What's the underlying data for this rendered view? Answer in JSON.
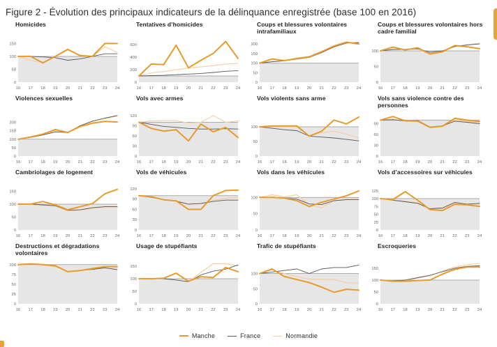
{
  "title": "Figure 2 - Évolution des principaux indicateurs de la délinquance enregistrée (base 100 en 2016)",
  "x_years": [
    "16",
    "17",
    "18",
    "19",
    "20",
    "21",
    "22",
    "23",
    "24"
  ],
  "colors": {
    "manche": "#E89B2D",
    "france": "#55555E",
    "normandie": "#F5CE9B",
    "area": "#E6E6E6",
    "baseline": "#ABABAB",
    "axis_text": "#666666",
    "accent_bar": "#E9A23B"
  },
  "legend": {
    "items": [
      {
        "label": "Manche",
        "color": "#E89B2D"
      },
      {
        "label": "France",
        "color": "#55555E"
      },
      {
        "label": "Normandie",
        "color": "#F5CE9B"
      }
    ]
  },
  "chart_data": [
    {
      "type": "line",
      "title": "Homicides",
      "yticks": [
        0,
        50,
        100,
        150
      ],
      "ymax": 170,
      "series": [
        {
          "name": "Manche",
          "values": [
            100,
            100,
            75,
            100,
            127,
            103,
            100,
            150,
            150
          ]
        },
        {
          "name": "France",
          "values": [
            100,
            100,
            98,
            95,
            85,
            90,
            100,
            110,
            110
          ]
        },
        {
          "name": "Normandie",
          "values": [
            100,
            85,
            75,
            100,
            125,
            105,
            100,
            138,
            115
          ]
        }
      ]
    },
    {
      "type": "line",
      "title": "Tentatives d’homicides",
      "yticks": [
        0,
        200,
        400,
        600
      ],
      "ymax": 700,
      "series": [
        {
          "name": "Manche",
          "values": [
            100,
            290,
            280,
            590,
            230,
            350,
            460,
            650,
            380
          ]
        },
        {
          "name": "France",
          "values": [
            100,
            105,
            110,
            120,
            130,
            140,
            155,
            175,
            185
          ]
        },
        {
          "name": "Normandie",
          "values": [
            100,
            150,
            170,
            200,
            225,
            245,
            265,
            290,
            300
          ]
        }
      ]
    },
    {
      "type": "line",
      "title": "Coups et blessures volontaires intrafamiliaux",
      "yticks": [
        0,
        50,
        100,
        150,
        200
      ],
      "ymax": 230,
      "series": [
        {
          "name": "Manche",
          "values": [
            100,
            122,
            113,
            125,
            133,
            160,
            190,
            210,
            200
          ]
        },
        {
          "name": "France",
          "values": [
            100,
            107,
            112,
            122,
            130,
            155,
            185,
            205,
            207
          ]
        },
        {
          "name": "Normandie",
          "values": [
            100,
            110,
            112,
            120,
            132,
            158,
            188,
            208,
            210
          ]
        }
      ]
    },
    {
      "type": "line",
      "title": "Coups et blessures volontaires hors cadre familial",
      "yticks": [
        0,
        50,
        100
      ],
      "ymax": 140,
      "series": [
        {
          "name": "Manche",
          "values": [
            100,
            112,
            103,
            110,
            90,
            97,
            117,
            113,
            107
          ]
        },
        {
          "name": "France",
          "values": [
            100,
            104,
            105,
            107,
            96,
            100,
            114,
            119,
            122
          ]
        },
        {
          "name": "Normandie",
          "values": [
            100,
            106,
            104,
            106,
            93,
            98,
            113,
            119,
            125
          ]
        }
      ]
    },
    {
      "type": "line",
      "title": "Violences sexuelles",
      "yticks": [
        0,
        50,
        100,
        150,
        200
      ],
      "ymax": 260,
      "series": [
        {
          "name": "Manche",
          "values": [
            100,
            113,
            130,
            157,
            140,
            175,
            195,
            205,
            202
          ]
        },
        {
          "name": "France",
          "values": [
            100,
            110,
            125,
            143,
            140,
            180,
            207,
            225,
            240
          ]
        },
        {
          "name": "Normandie",
          "values": [
            100,
            112,
            127,
            147,
            137,
            178,
            205,
            222,
            237
          ]
        }
      ]
    },
    {
      "type": "line",
      "title": "Vols avec armes",
      "yticks": [
        0,
        30,
        60,
        90,
        120
      ],
      "ymax": 130,
      "series": [
        {
          "name": "Manche",
          "values": [
            100,
            82,
            74,
            78,
            45,
            95,
            72,
            85,
            55
          ]
        },
        {
          "name": "France",
          "values": [
            100,
            94,
            88,
            85,
            82,
            80,
            80,
            81,
            80
          ]
        },
        {
          "name": "Normandie",
          "values": [
            100,
            104,
            105,
            105,
            98,
            100,
            120,
            100,
            104
          ]
        }
      ]
    },
    {
      "type": "line",
      "title": "Vols violents sans arme",
      "yticks": [
        0,
        50,
        100
      ],
      "ymax": 150,
      "series": [
        {
          "name": "Manche",
          "values": [
            100,
            103,
            103,
            103,
            68,
            85,
            123,
            110,
            133
          ]
        },
        {
          "name": "France",
          "values": [
            100,
            95,
            90,
            87,
            68,
            65,
            62,
            57,
            52
          ]
        },
        {
          "name": "Normandie",
          "values": [
            100,
            100,
            100,
            100,
            70,
            80,
            85,
            75,
            62
          ]
        }
      ]
    },
    {
      "type": "line",
      "title": "Vols sans violence contre des personnes",
      "yticks": [
        0,
        30,
        60,
        90
      ],
      "ymax": 122,
      "series": [
        {
          "name": "Manche",
          "values": [
            100,
            110,
            98,
            97,
            80,
            83,
            105,
            100,
            96
          ]
        },
        {
          "name": "France",
          "values": [
            100,
            101,
            98,
            99,
            81,
            84,
            97,
            94,
            90
          ]
        },
        {
          "name": "Normandie",
          "values": [
            100,
            103,
            97,
            99,
            79,
            82,
            100,
            97,
            94
          ]
        }
      ]
    },
    {
      "type": "line",
      "title": "Cambriolages de logement",
      "yticks": [
        0,
        50,
        100,
        150
      ],
      "ymax": 170,
      "series": [
        {
          "name": "Manche",
          "values": [
            100,
            100,
            110,
            97,
            78,
            90,
            102,
            140,
            157
          ]
        },
        {
          "name": "France",
          "values": [
            100,
            100,
            97,
            94,
            76,
            78,
            86,
            90,
            90
          ]
        },
        {
          "name": "Normandie",
          "values": [
            100,
            98,
            95,
            92,
            74,
            76,
            84,
            88,
            88
          ]
        }
      ]
    },
    {
      "type": "line",
      "title": "Vols de véhicules",
      "yticks": [
        0,
        30,
        60,
        90,
        120
      ],
      "ymax": 128,
      "series": [
        {
          "name": "Manche",
          "values": [
            100,
            97,
            88,
            85,
            60,
            60,
            100,
            115,
            116
          ]
        },
        {
          "name": "France",
          "values": [
            100,
            95,
            88,
            84,
            75,
            77,
            83,
            87,
            87
          ]
        },
        {
          "name": "Normandie",
          "values": [
            100,
            96,
            89,
            85,
            76,
            78,
            87,
            92,
            95
          ]
        }
      ]
    },
    {
      "type": "line",
      "title": "Vols dans les véhicules",
      "yticks": [
        0,
        50,
        100
      ],
      "ymax": 135,
      "series": [
        {
          "name": "Manche",
          "values": [
            100,
            100,
            98,
            90,
            72,
            85,
            95,
            105,
            120
          ]
        },
        {
          "name": "France",
          "values": [
            100,
            100,
            98,
            95,
            80,
            78,
            90,
            93,
            93
          ]
        },
        {
          "name": "Normandie",
          "values": [
            100,
            108,
            102,
            108,
            78,
            68,
            90,
            95,
            97
          ]
        }
      ]
    },
    {
      "type": "line",
      "title": "Vols d’accessoires sur véhicules",
      "yticks": [
        0,
        25,
        50,
        75,
        100,
        125
      ],
      "ymax": 140,
      "series": [
        {
          "name": "Manche",
          "values": [
            100,
            97,
            122,
            95,
            65,
            62,
            82,
            80,
            75
          ]
        },
        {
          "name": "France",
          "values": [
            100,
            95,
            90,
            85,
            68,
            70,
            88,
            82,
            85
          ]
        },
        {
          "name": "Normandie",
          "values": [
            100,
            96,
            92,
            87,
            67,
            68,
            85,
            80,
            82
          ]
        }
      ]
    },
    {
      "type": "line",
      "title": "Destructions et dégradations volontaires",
      "yticks": [
        0,
        25,
        50,
        75,
        100
      ],
      "ymax": 112,
      "series": [
        {
          "name": "Manche",
          "values": [
            100,
            102,
            100,
            97,
            82,
            85,
            90,
            95,
            95
          ]
        },
        {
          "name": "France",
          "values": [
            100,
            101,
            100,
            96,
            82,
            85,
            88,
            92,
            87
          ]
        },
        {
          "name": "Normandie",
          "values": [
            100,
            101,
            99,
            95,
            81,
            84,
            88,
            91,
            90
          ]
        }
      ]
    },
    {
      "type": "line",
      "title": "Usage de stupéfiants",
      "yticks": [
        0,
        50,
        100,
        150
      ],
      "ymax": 175,
      "series": [
        {
          "name": "Manche",
          "values": [
            100,
            100,
            102,
            122,
            90,
            108,
            105,
            145,
            128
          ]
        },
        {
          "name": "France",
          "values": [
            100,
            100,
            100,
            95,
            88,
            115,
            130,
            138,
            155
          ]
        },
        {
          "name": "Normandie",
          "values": [
            100,
            100,
            100,
            95,
            88,
            125,
            160,
            160,
            150
          ]
        }
      ]
    },
    {
      "type": "line",
      "title": "Trafic de stupéfiants",
      "yticks": [
        0,
        50,
        100
      ],
      "ymax": 145,
      "series": [
        {
          "name": "Manche",
          "values": [
            100,
            115,
            90,
            80,
            70,
            55,
            38,
            48,
            45
          ]
        },
        {
          "name": "France",
          "values": [
            100,
            105,
            110,
            115,
            100,
            115,
            120,
            120,
            128
          ]
        },
        {
          "name": "Normandie",
          "values": [
            100,
            113,
            100,
            90,
            82,
            80,
            80,
            70,
            68
          ]
        }
      ]
    },
    {
      "type": "line",
      "title": "Escroqueries",
      "yticks": [
        0,
        50,
        100,
        150
      ],
      "ymax": 185,
      "series": [
        {
          "name": "Manche",
          "values": [
            100,
            95,
            95,
            98,
            100,
            125,
            145,
            155,
            155
          ]
        },
        {
          "name": "France",
          "values": [
            100,
            97,
            100,
            110,
            120,
            135,
            150,
            158,
            160
          ]
        },
        {
          "name": "Normandie",
          "values": [
            100,
            96,
            98,
            108,
            118,
            138,
            155,
            165,
            170
          ]
        }
      ]
    }
  ]
}
